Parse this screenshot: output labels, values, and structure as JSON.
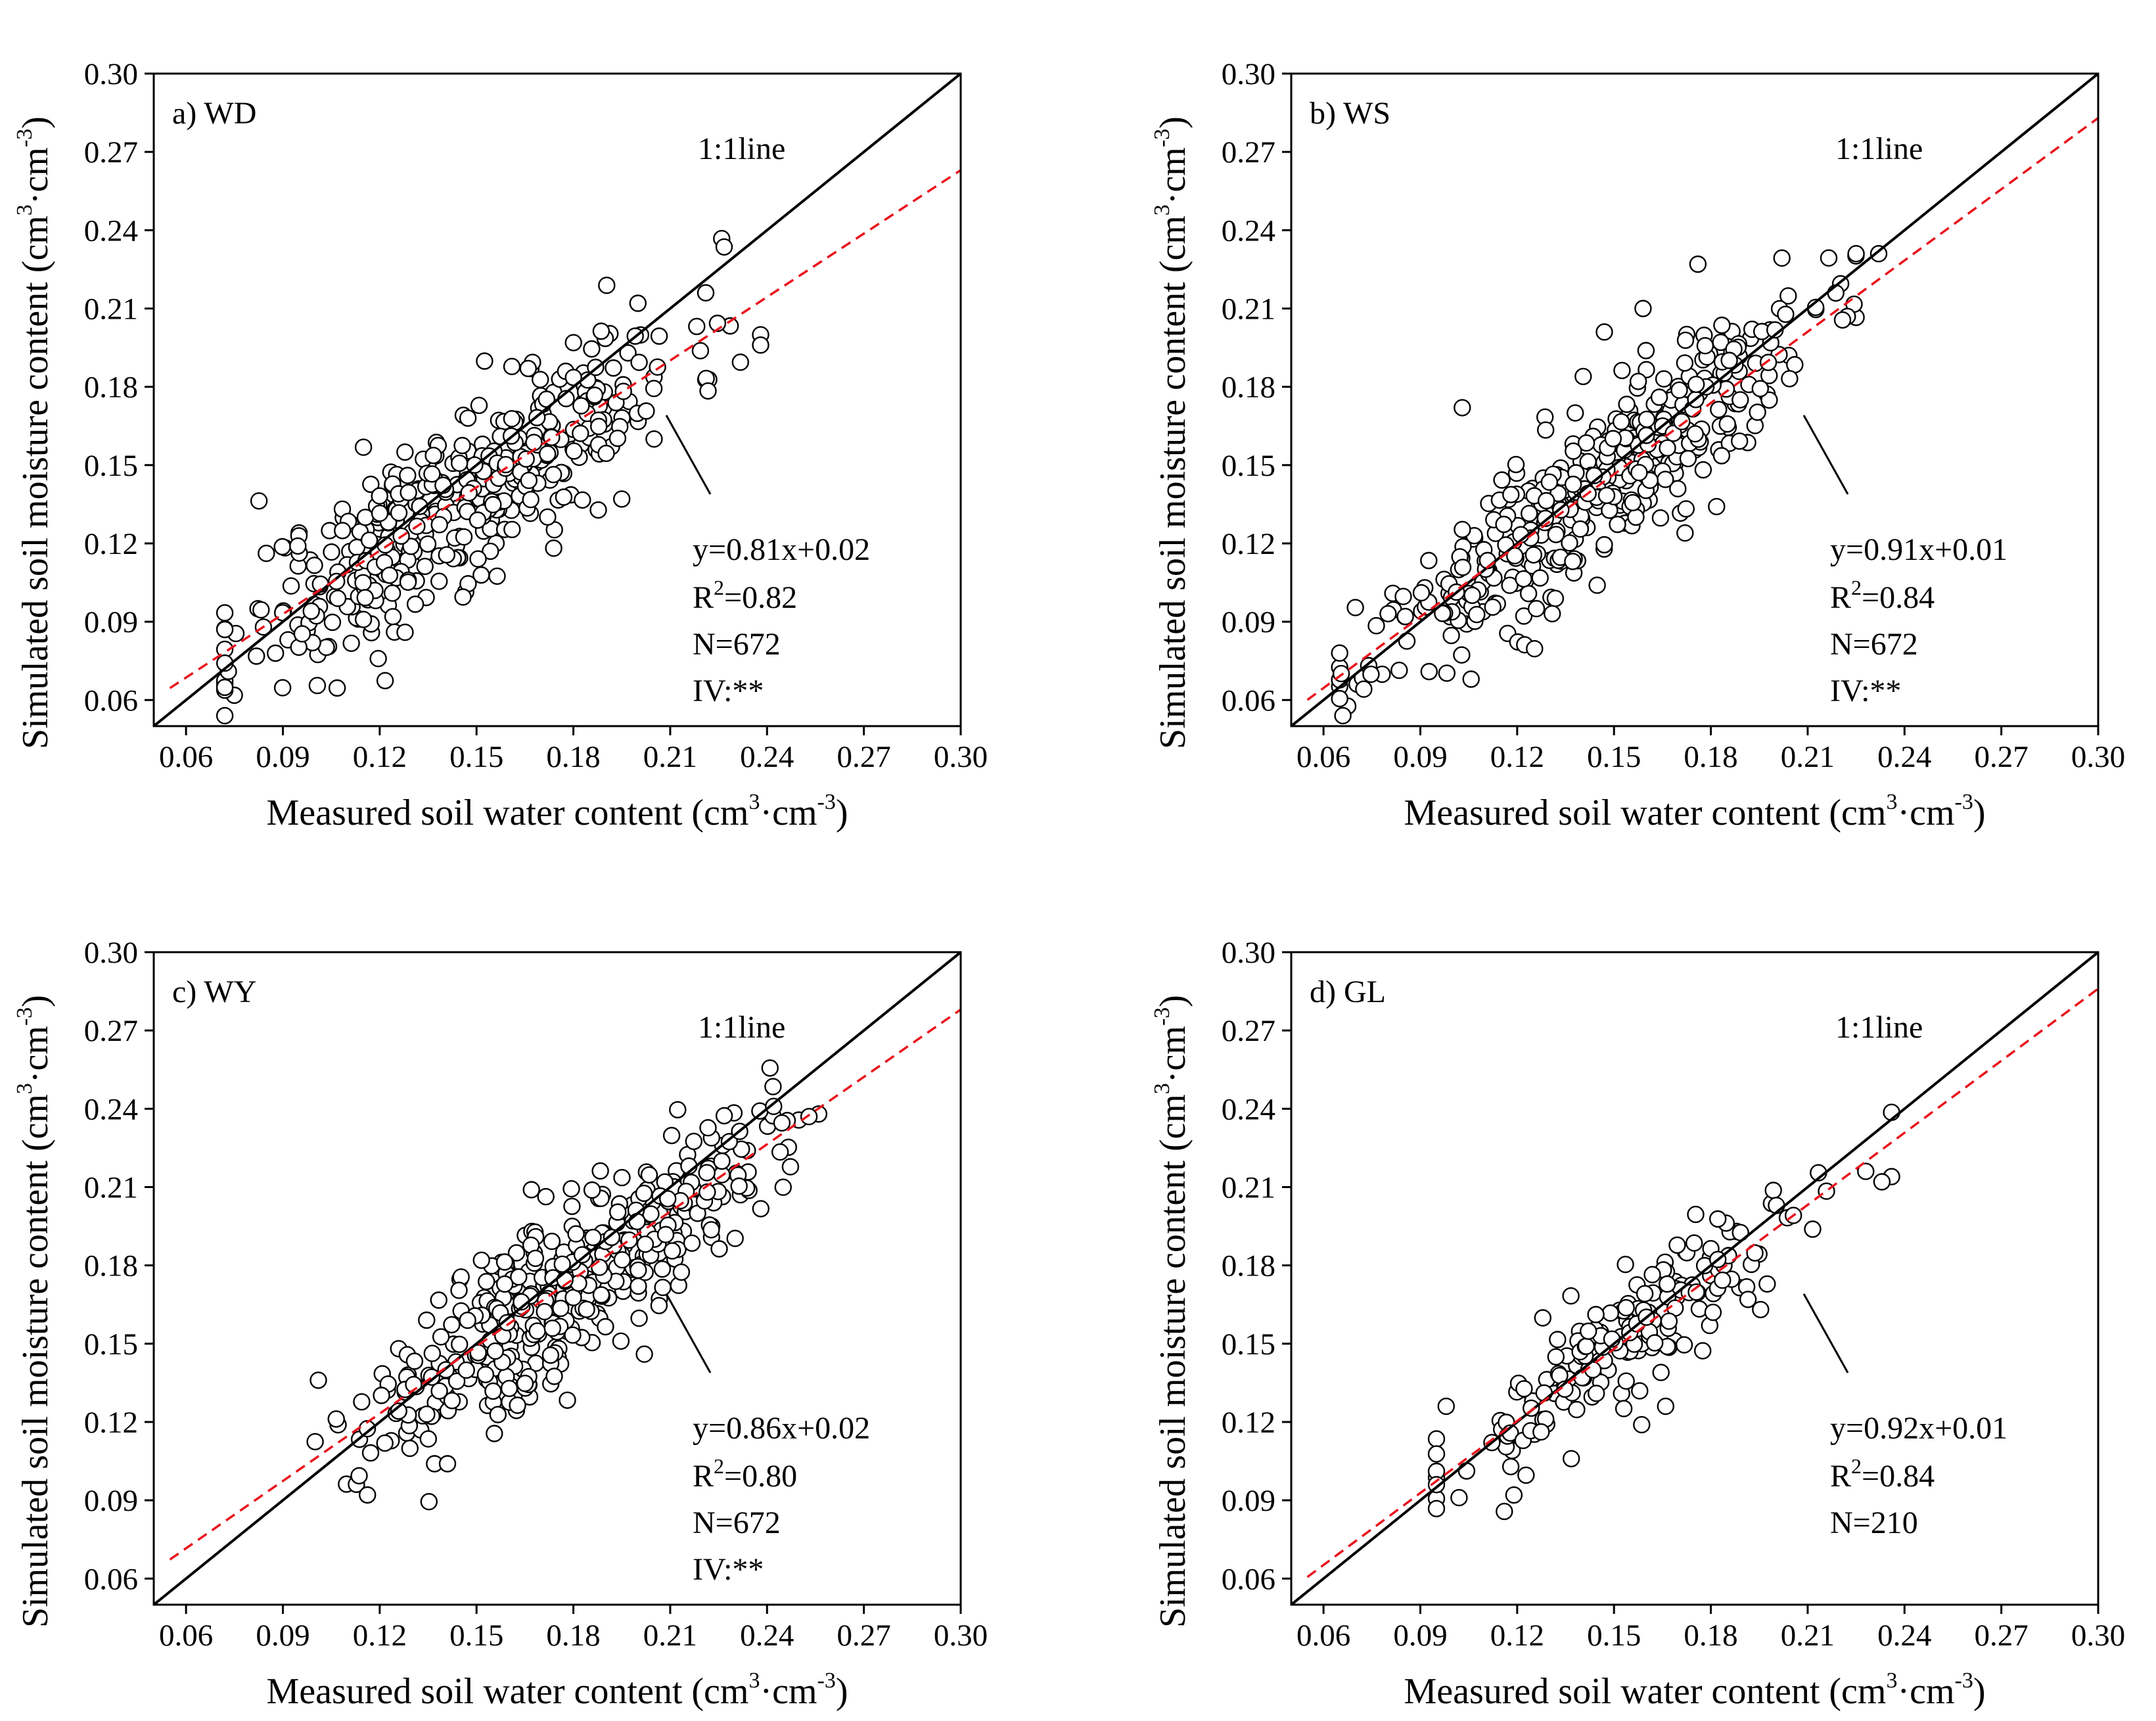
{
  "figure": {
    "xlabel_main": "Measured soil water content (cm",
    "xlabel_mid": "·cm",
    "xlabel_end": ")",
    "ylabel_main": "Simulated soil moisture content (cm",
    "ylabel_mid": "·cm",
    "ylabel_end": ")",
    "sup3": "3",
    "supneg3": "-3",
    "ref_line_label": "1:1line",
    "r2_prefix": "R",
    "r2_sup": "2",
    "colors": {
      "points_fill": "#ffffff",
      "points_edge": "#000000",
      "one_to_one": "#000000",
      "fit": "#e8141c"
    }
  },
  "chart_data": [
    {
      "type": "scatter",
      "panel_label": "a) WD",
      "xlim": [
        0.05,
        0.3
      ],
      "ylim": [
        0.05,
        0.3
      ],
      "x_ticks": [
        "0.06",
        "0.09",
        "0.12",
        "0.15",
        "0.18",
        "0.21",
        "0.24",
        "0.27",
        "0.30"
      ],
      "y_ticks": [
        "0.06",
        "0.09",
        "0.12",
        "0.15",
        "0.18",
        "0.21",
        "0.24",
        "0.27",
        "0.30"
      ],
      "ref_line": "1:1",
      "fit": {
        "slope": 0.81,
        "intercept": 0.02
      },
      "stats": {
        "equation": "y=0.81x+0.02",
        "r2": "=0.82",
        "n": "N=672",
        "iv": "IV:**"
      },
      "cloud": {
        "n": 430,
        "x_range": [
          0.072,
          0.238
        ],
        "x_center": 0.145,
        "x_spread": 0.035,
        "noise": 0.017,
        "seed": 11
      },
      "extra_points": [
        [
          0.205,
          0.16
        ],
        [
          0.221,
          0.216
        ],
        [
          0.238,
          0.196
        ],
        [
          0.195,
          0.137
        ],
        [
          0.072,
          0.087
        ],
        [
          0.2,
          0.212
        ],
        [
          0.166,
          0.187
        ]
      ]
    },
    {
      "type": "scatter",
      "panel_label": "b) WS",
      "xlim": [
        0.05,
        0.3
      ],
      "ylim": [
        0.05,
        0.3
      ],
      "x_ticks": [
        "0.06",
        "0.09",
        "0.12",
        "0.15",
        "0.18",
        "0.21",
        "0.24",
        "0.27",
        "0.30"
      ],
      "y_ticks": [
        "0.06",
        "0.09",
        "0.12",
        "0.15",
        "0.18",
        "0.21",
        "0.24",
        "0.27",
        "0.30"
      ],
      "ref_line": "1:1",
      "fit": {
        "slope": 0.91,
        "intercept": 0.01
      },
      "stats": {
        "equation": "y=0.91x+0.01",
        "r2": "=0.84",
        "n": "N=672",
        "iv": "IV:**"
      },
      "cloud": {
        "n": 430,
        "x_range": [
          0.065,
          0.225
        ],
        "x_center": 0.142,
        "x_spread": 0.034,
        "noise": 0.015,
        "seed": 23
      },
      "extra_points": [
        [
          0.225,
          0.231
        ],
        [
          0.232,
          0.231
        ],
        [
          0.176,
          0.227
        ],
        [
          0.103,
          0.172
        ],
        [
          0.159,
          0.21
        ],
        [
          0.147,
          0.201
        ],
        [
          0.065,
          0.078
        ],
        [
          0.172,
          0.124
        ]
      ]
    },
    {
      "type": "scatter",
      "panel_label": "c) WY",
      "xlim": [
        0.05,
        0.3
      ],
      "ylim": [
        0.05,
        0.3
      ],
      "x_ticks": [
        "0.06",
        "0.09",
        "0.12",
        "0.15",
        "0.18",
        "0.21",
        "0.24",
        "0.27",
        "0.30"
      ],
      "y_ticks": [
        "0.06",
        "0.09",
        "0.12",
        "0.15",
        "0.18",
        "0.21",
        "0.24",
        "0.27",
        "0.30"
      ],
      "ref_line": "1:1",
      "fit": {
        "slope": 0.86,
        "intercept": 0.02
      },
      "stats": {
        "equation": "y=0.86x+0.02",
        "r2": "=0.80",
        "n": "N=672",
        "iv": "IV:**"
      },
      "cloud": {
        "n": 430,
        "x_range": [
          0.1,
          0.256
        ],
        "x_center": 0.178,
        "x_spread": 0.03,
        "noise": 0.016,
        "seed": 37
      },
      "extra_points": [
        [
          0.256,
          0.238
        ],
        [
          0.253,
          0.237
        ],
        [
          0.167,
          0.209
        ],
        [
          0.137,
          0.104
        ],
        [
          0.141,
          0.104
        ],
        [
          0.101,
          0.136
        ],
        [
          0.202,
          0.146
        ]
      ]
    },
    {
      "type": "scatter",
      "panel_label": "d) GL",
      "xlim": [
        0.05,
        0.3
      ],
      "ylim": [
        0.05,
        0.3
      ],
      "x_ticks": [
        "0.06",
        "0.09",
        "0.12",
        "0.15",
        "0.18",
        "0.21",
        "0.24",
        "0.27",
        "0.30"
      ],
      "y_ticks": [
        "0.06",
        "0.09",
        "0.12",
        "0.15",
        "0.18",
        "0.21",
        "0.24",
        "0.27",
        "0.30"
      ],
      "ref_line": "1:1",
      "fit": {
        "slope": 0.92,
        "intercept": 0.01
      },
      "stats": {
        "equation": "y=0.92x+0.01",
        "r2": "=0.84",
        "n": "N=210"
      },
      "cloud": {
        "n": 190,
        "x_range": [
          0.095,
          0.236
        ],
        "x_center": 0.155,
        "x_spread": 0.03,
        "noise": 0.013,
        "seed": 53
      },
      "extra_points": [
        [
          0.095,
          0.096
        ],
        [
          0.098,
          0.126
        ],
        [
          0.236,
          0.214
        ],
        [
          0.228,
          0.216
        ],
        [
          0.166,
          0.126
        ],
        [
          0.102,
          0.091
        ],
        [
          0.233,
          0.212
        ]
      ]
    }
  ]
}
